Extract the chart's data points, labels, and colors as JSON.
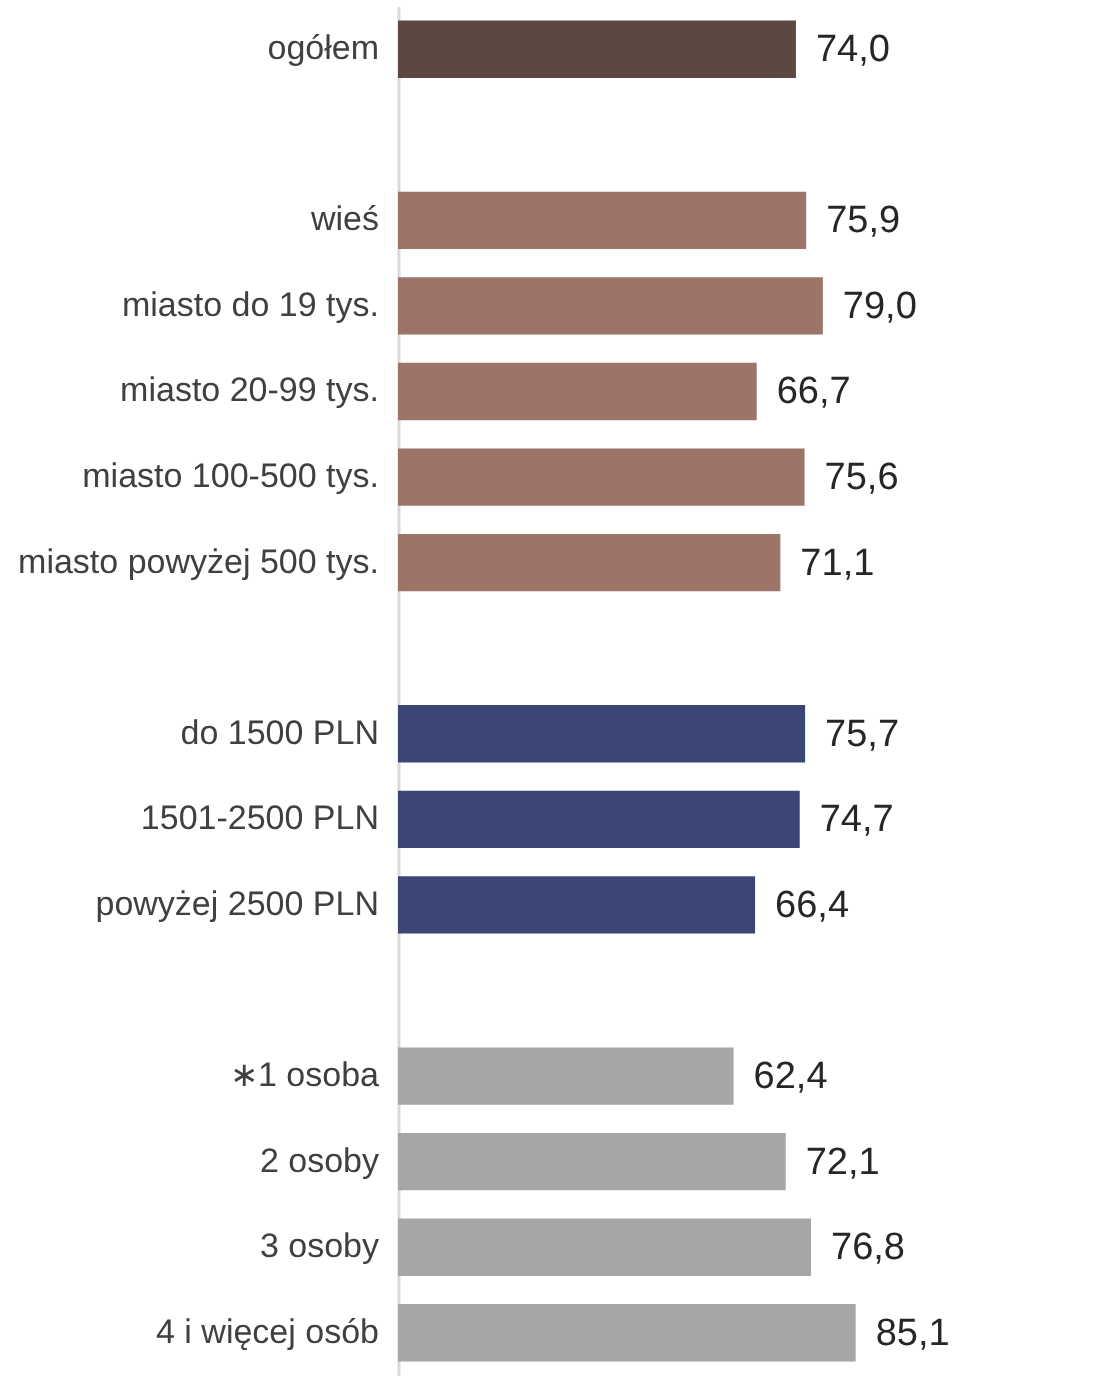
{
  "chart_data": {
    "type": "bar",
    "orientation": "horizontal",
    "categories": [
      "ogółem",
      null,
      "wieś",
      "miasto do 19 tys.",
      "miasto 20-99 tys.",
      "miasto 100-500 tys.",
      "miasto powyżej 500 tys.",
      null,
      "do 1500 PLN",
      "1501-2500 PLN",
      "powyżej 2500 PLN",
      null,
      "∗1 osoba",
      "2 osoby",
      "3 osoby",
      "4 i więcej osób"
    ],
    "values": [
      74.0,
      null,
      75.9,
      79.0,
      66.7,
      75.6,
      71.1,
      null,
      75.7,
      74.7,
      66.4,
      null,
      62.4,
      72.1,
      76.8,
      85.1
    ],
    "colors": [
      "#5b4841",
      null,
      "#9c7468",
      "#9c7468",
      "#9c7468",
      "#9c7468",
      "#9c7468",
      null,
      "#3b4674",
      "#3b4674",
      "#3b4674",
      null,
      "#a6a6a6",
      "#a6a6a6",
      "#a6a6a6",
      "#a6a6a6"
    ],
    "value_labels": [
      "74,0",
      null,
      "75,9",
      "79,0",
      "66,7",
      "75,6",
      "71,1",
      null,
      "75,7",
      "74,7",
      "66,4",
      null,
      "62,4",
      "72,1",
      "76,8",
      "85,1"
    ]
  }
}
